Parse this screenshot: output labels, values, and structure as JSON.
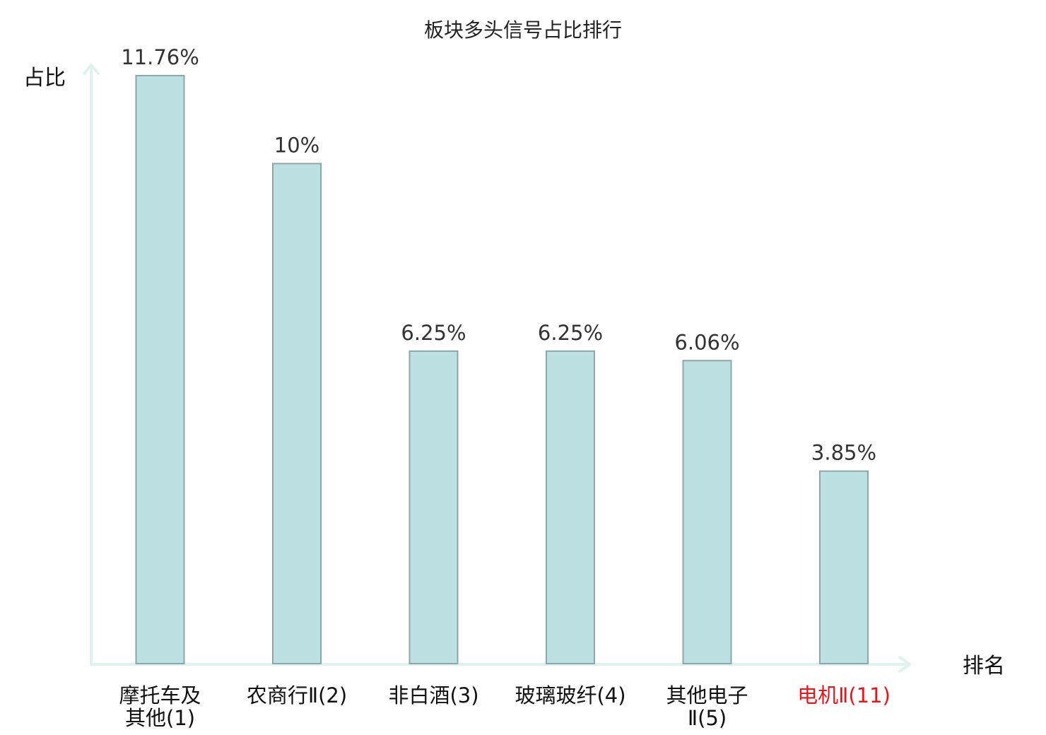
{
  "chart_data": {
    "type": "bar",
    "title": "板块多头信号占比排行",
    "ylabel": "占比",
    "xlabel": "排名",
    "ylim": [
      0,
      13.1
    ],
    "grid": false,
    "categories": [
      [
        "摩托车及",
        "其他(1)"
      ],
      [
        "农商行Ⅱ(2)"
      ],
      [
        "非白酒(3)"
      ],
      [
        "玻璃玻纤(4)"
      ],
      [
        "其他电子",
        "Ⅱ(5)"
      ],
      [
        "电机Ⅱ(11)"
      ]
    ],
    "values": [
      11.76,
      10,
      6.25,
      6.25,
      6.06,
      3.85
    ],
    "value_labels": [
      "11.76%",
      "10%",
      "6.25%",
      "6.25%",
      "6.06%",
      "3.85%"
    ],
    "highlight_index": 5,
    "colors": {
      "bar_fill": "#bde0e3",
      "bar_stroke": "#8aa8ab",
      "axis": "#dff2f0",
      "highlight_text": "#e8161b",
      "text": "#111111"
    }
  }
}
